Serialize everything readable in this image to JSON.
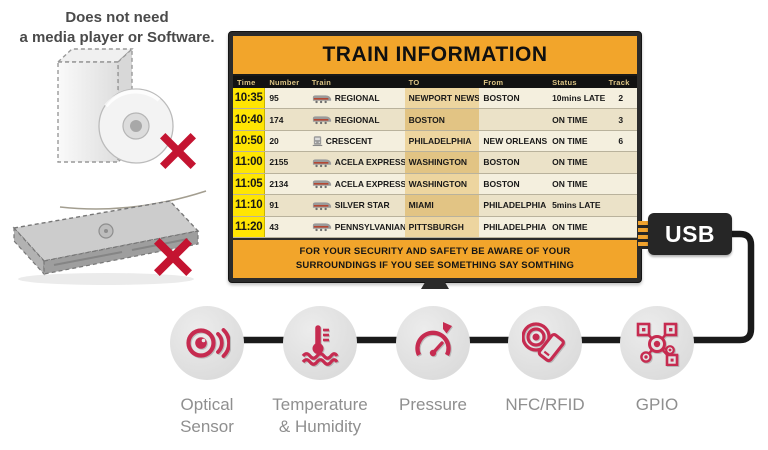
{
  "caption": {
    "lines": [
      "Does not need",
      "a media player or Software."
    ]
  },
  "crossed_out_items": [
    {
      "icon": "software-box-icon",
      "meaning": "software box with CD, crossed out"
    },
    {
      "icon": "media-player-icon",
      "meaning": "media player device, crossed out"
    }
  ],
  "tv": {
    "header_title": "TRAIN INFORMATION",
    "table": {
      "columns": [
        "Time",
        "Number",
        "Train",
        "TO",
        "From",
        "Status",
        "Track"
      ],
      "rows": [
        {
          "time": "10:35",
          "number": "95",
          "icon": "regional-train-icon",
          "train": "REGIONAL",
          "to": "NEWPORT NEWS",
          "from": "BOSTON",
          "status": "10mins LATE",
          "track": "2"
        },
        {
          "time": "10:40",
          "number": "174",
          "icon": "regional-train-icon",
          "train": "REGIONAL",
          "to": "BOSTON",
          "from": "",
          "status": "ON TIME",
          "track": "3"
        },
        {
          "time": "10:50",
          "number": "20",
          "icon": "crescent-train-icon",
          "train": "CRESCENT",
          "to": "PHILADELPHIA",
          "from": "NEW ORLEANS",
          "status": "ON TIME",
          "track": "6"
        },
        {
          "time": "11:00",
          "number": "2155",
          "icon": "acela-express-train-icon",
          "train": "ACELA EXPRESS",
          "to": "WASHINGTON",
          "from": "BOSTON",
          "status": "ON TIME",
          "track": ""
        },
        {
          "time": "11:05",
          "number": "2134",
          "icon": "acela-express-train-icon",
          "train": "ACELA EXPRESS",
          "to": "WASHINGTON",
          "from": "BOSTON",
          "status": "ON TIME",
          "track": ""
        },
        {
          "time": "11:10",
          "number": "91",
          "icon": "silver-star-train-icon",
          "train": "SILVER STAR",
          "to": "MIAMI",
          "from": "PHILADELPHIA",
          "status": "5mins LATE",
          "track": ""
        },
        {
          "time": "11:20",
          "number": "43",
          "icon": "pennsylvanian-train-icon",
          "train": "PENNSYLVANIAN",
          "to": "PITTSBURGH",
          "from": "PHILADELPHIA",
          "status": "ON TIME",
          "track": ""
        }
      ]
    },
    "footer_lines": [
      "FOR YOUR SECURITY AND SAFETY BE AWARE OF YOUR",
      "SURROUNDINGS IF YOU SEE SOMETHING SAY SOMTHING"
    ]
  },
  "usb_label": "USB",
  "sensors": [
    {
      "icon": "optical-sensor-icon",
      "lines": [
        "Optical",
        "Sensor"
      ]
    },
    {
      "icon": "temperature-humidity-icon",
      "lines": [
        "Temperature",
        "& Humidity"
      ]
    },
    {
      "icon": "pressure-icon",
      "lines": [
        "Pressure"
      ]
    },
    {
      "icon": "nfc-rfid-icon",
      "lines": [
        "NFC/RFID"
      ]
    },
    {
      "icon": "gpio-icon",
      "lines": [
        "GPIO"
      ]
    }
  ],
  "colors": {
    "accent_orange": "#F2A52B",
    "time_yellow": "#FFE503",
    "cross_red": "#C41431",
    "sensor_red": "#C62B50",
    "label_gray": "#8F8F8F"
  }
}
